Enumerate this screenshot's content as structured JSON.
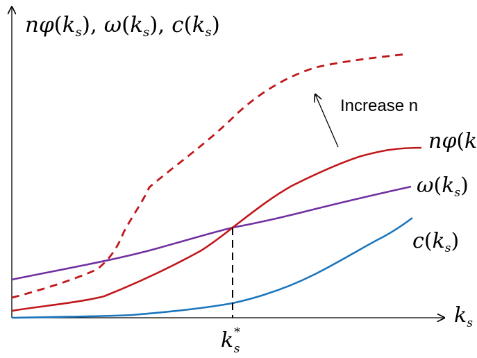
{
  "axes": {
    "y_label": {
      "f1_name": "nφ",
      "f2_name": "ω",
      "f3_name": "c",
      "arg": "k",
      "sub": "s",
      "sep": ","
    },
    "x_label": {
      "base": "k",
      "sub": "s"
    }
  },
  "curves": {
    "n_phi": {
      "name": "nφ",
      "arg": "k",
      "sub": "s",
      "color": "#c0171b"
    },
    "omega": {
      "name": "ω",
      "arg": "k",
      "sub": "s",
      "color": "#7030a0"
    },
    "c": {
      "name": "c",
      "arg": "k",
      "sub": "s",
      "color": "#1b75bc"
    },
    "n_phi_increased": {
      "color": "#c0171b",
      "dash": true
    }
  },
  "annotation": {
    "text": "Increase n"
  },
  "marker": {
    "base": "k",
    "sub": "s",
    "sup": "*"
  }
}
